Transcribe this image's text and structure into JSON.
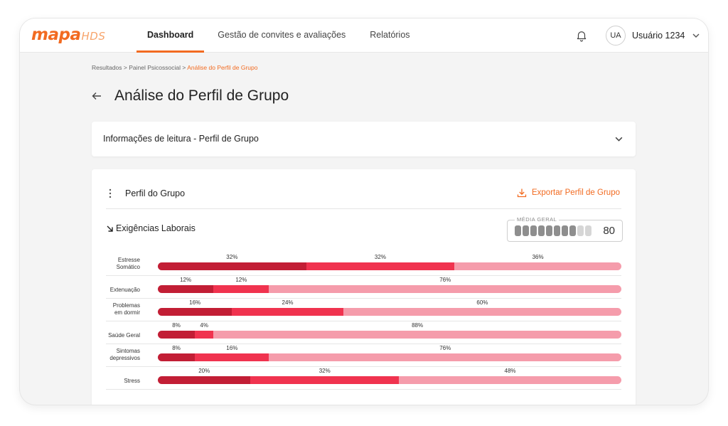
{
  "app": {
    "logo_main": "mapa",
    "logo_sub": "HDS"
  },
  "nav": {
    "items": [
      {
        "label": "Dashboard",
        "active": true
      },
      {
        "label": "Gestão de convites e avaliações",
        "active": false
      },
      {
        "label": "Relatórios",
        "active": false
      }
    ]
  },
  "header": {
    "notifications_icon": "bell-icon",
    "user_initials": "UA",
    "user_name": "Usuário 1234",
    "user_menu_icon": "chevron-down-icon"
  },
  "breadcrumb": {
    "items": [
      "Resultados",
      "Painel Psicossocial"
    ],
    "current": "Análise do Perfil de Grupo"
  },
  "page": {
    "title": "Análise do Perfil de Grupo",
    "back_icon": "arrow-left-icon"
  },
  "info_panel": {
    "title": "Informações de leitura - Perfil de Grupo",
    "expand_icon": "chevron-down-icon"
  },
  "profile_card": {
    "title": "Perfil do Grupo",
    "menu_icon": "kebab-icon",
    "export_label": "Exportar Perfil de Grupo",
    "export_icon": "download-icon"
  },
  "section": {
    "title": "Exigências Laborais",
    "icon": "arrow-down-right-icon",
    "media_geral_label": "MÉDIA GERAL",
    "media_geral_value": "80",
    "media_geral_level": 0.8
  },
  "colors": {
    "accent": "#f26b21",
    "high": "#c21e35",
    "medium": "#f0334f",
    "low": "#f59cab",
    "meter_filled": "#8e8e8e",
    "meter_empty": "#d6d6d6"
  },
  "chart_data": {
    "type": "bar",
    "stacked": true,
    "orientation": "horizontal",
    "categories": [
      "Estresse Somático",
      "Extenuação",
      "Problemas em dormir",
      "Saúde Geral",
      "Sintomas depressivos",
      "Stress"
    ],
    "series": [
      {
        "values": [
          32,
          12,
          16,
          8,
          8,
          20
        ]
      },
      {
        "values": [
          32,
          12,
          24,
          4,
          16,
          32
        ]
      },
      {
        "values": [
          36,
          76,
          60,
          88,
          76,
          48
        ]
      }
    ],
    "value_labels": [
      [
        "32%",
        "32%",
        "36%"
      ],
      [
        "12%",
        "12%",
        "76%"
      ],
      [
        "16%",
        "24%",
        "60%"
      ],
      [
        "8%",
        "4%",
        "88%"
      ],
      [
        "8%",
        "16%",
        "76%"
      ],
      [
        "20%",
        "32%",
        "48%"
      ]
    ],
    "xlim": [
      0,
      100
    ]
  }
}
